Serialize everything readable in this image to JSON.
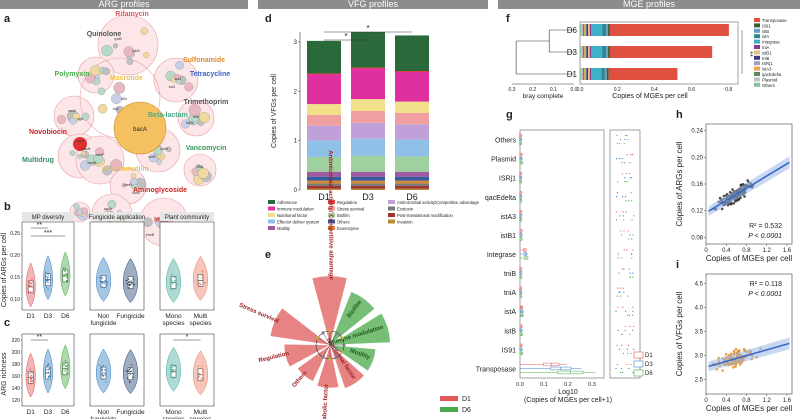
{
  "headers": [
    "ARG profiles",
    "VFG profiles",
    "MGE profiles"
  ],
  "colors": {
    "D1": "#e05a5a",
    "D3": "#3a82c4",
    "D6": "#4aaa4a",
    "a_fill": "#f5a0a8",
    "panel_header": "#e6e6e6"
  },
  "panel_labels": [
    "a",
    "b",
    "c",
    "d",
    "e",
    "f",
    "g",
    "h",
    "i"
  ],
  "a": {
    "classes": [
      {
        "name": "Rifamycin",
        "color": "#e05a5a"
      },
      {
        "name": "Quinolone",
        "color": "#555555"
      },
      {
        "name": "Sulfonamide",
        "color": "#e08a2a"
      },
      {
        "name": "Tetracycline",
        "color": "#3a5fc4"
      },
      {
        "name": "Polymyxin",
        "color": "#4aaa4a"
      },
      {
        "name": "Macrolide",
        "color": "#f0c040"
      },
      {
        "name": "Trimethoprim",
        "color": "#555555"
      },
      {
        "name": "Novobiocin",
        "color": "#d02020"
      },
      {
        "name": "Beta-lactam",
        "color": "#4aaa88"
      },
      {
        "name": "Multidrug",
        "color": "#3a8a6a"
      },
      {
        "name": "Vancomycin",
        "color": "#3a9a5a"
      },
      {
        "name": "Pleuromutilin",
        "color": "#f0c040"
      },
      {
        "name": "Aminoglycoside",
        "color": "#d02020"
      },
      {
        "name": "MLS",
        "color": "#e05a5a"
      }
    ],
    "center_label": "bacA",
    "gene_labels": [
      "rpoB",
      "rphB",
      "sul1",
      "sul2",
      "tetA",
      "tetW",
      "arnA",
      "ugd",
      "mexF",
      "mexB",
      "oprM",
      "acrB",
      "vanR",
      "vanS",
      "aadA",
      "strA",
      "ermF",
      "vgaB",
      "novA",
      "dfrA",
      "bl2e",
      "tolC",
      "macB",
      "emrB"
    ]
  },
  "b": {
    "ylabel": "Copies of ARGs per cell",
    "yticks": [
      "0.10",
      "0.15",
      "0.20",
      "0.25"
    ],
    "panels": [
      {
        "title": "MP diversity",
        "groups": [
          "D1",
          "D3",
          "D6"
        ],
        "means": [
          0.142,
          0.155,
          0.162
        ],
        "sig": [
          "**",
          "***"
        ]
      },
      {
        "title": "Fungicide application",
        "groups": [
          "Non fungicide",
          "Fungicide"
        ],
        "means": [
          0.152,
          0.15
        ]
      },
      {
        "title": "Plant community",
        "groups": [
          "Mono species",
          "Multi species"
        ],
        "means": [
          0.15,
          0.154
        ]
      }
    ]
  },
  "c": {
    "ylabel": "ARG richness",
    "yticks": [
      "120",
      "140",
      "160",
      "180",
      "200",
      "220"
    ],
    "panels": [
      {
        "groups": [
          "D1",
          "D3",
          "D6"
        ],
        "means": [
          158,
          165,
          172
        ],
        "sig": [
          "**"
        ]
      },
      {
        "groups": [
          "Non fungicide",
          "Fungicide"
        ],
        "means": [
          165,
          164
        ]
      },
      {
        "groups": [
          "Mono species",
          "Multi species"
        ],
        "means": [
          168,
          162
        ],
        "sig": [
          "*"
        ]
      }
    ]
  },
  "chart_data": [
    {
      "panel": "d",
      "type": "bar",
      "stacked": true,
      "ylabel": "Copies of VFGs per cell",
      "ylim": [
        0,
        3.2
      ],
      "yticks": [
        "0",
        "1",
        "2",
        "3"
      ],
      "categories": [
        "D1",
        "D3",
        "D6"
      ],
      "sig": [
        "*",
        "*"
      ],
      "series": [
        {
          "name": "Invasion",
          "color": "#b98a3a",
          "values": [
            0.03,
            0.03,
            0.03
          ]
        },
        {
          "name": "Post-translational modification",
          "color": "#a03030",
          "values": [
            0.05,
            0.05,
            0.05
          ]
        },
        {
          "name": "Exotoxin",
          "color": "#7a7a7a",
          "values": [
            0.05,
            0.05,
            0.05
          ]
        },
        {
          "name": "Exoenzyme",
          "color": "#d48a3a",
          "values": [
            0.06,
            0.06,
            0.06
          ]
        },
        {
          "name": "Others",
          "color": "#3a5aa0",
          "values": [
            0.08,
            0.08,
            0.08
          ]
        },
        {
          "name": "Motility",
          "color": "#a05aa0",
          "values": [
            0.1,
            0.1,
            0.1
          ]
        },
        {
          "name": "Biofilm",
          "color": "#9fd0a0",
          "values": [
            0.3,
            0.32,
            0.31
          ]
        },
        {
          "name": "Effector deliver system",
          "color": "#8fc0e8",
          "values": [
            0.33,
            0.35,
            0.34
          ]
        },
        {
          "name": "Antimicrobial activity/Competitive advantage",
          "color": "#c0a0d8",
          "values": [
            0.3,
            0.32,
            0.31
          ]
        },
        {
          "name": "Stress survival",
          "color": "#f0a0a0",
          "values": [
            0.22,
            0.24,
            0.23
          ]
        },
        {
          "name": "Nutritional factor",
          "color": "#f0e08a",
          "values": [
            0.22,
            0.24,
            0.23
          ]
        },
        {
          "name": "Immune modulation",
          "color": "#e030a0",
          "values": [
            0.6,
            0.62,
            0.6
          ]
        },
        {
          "name": "Regulation",
          "color": "#e04040",
          "values": [
            0.02,
            0.02,
            0.02
          ]
        },
        {
          "name": "Adherence",
          "color": "#2a6a3a",
          "values": [
            0.66,
            0.72,
            0.72
          ]
        }
      ],
      "legend_order": [
        "Adherence",
        "Regulation",
        "Antimicrobial activity/Competitive advantage",
        "Immune modulation",
        "Stress survival",
        "Exotoxin",
        "Nutritional factor",
        "Biofilm",
        "Post-translational modification",
        "Effector deliver system",
        "Others",
        "Invasion",
        "Motility",
        "Exoenzyme"
      ]
    },
    {
      "panel": "e",
      "type": "radial-bar",
      "legend": [
        {
          "name": "D1",
          "color": "#e05a5a"
        },
        {
          "name": "D6",
          "color": "#4aaa4a"
        }
      ],
      "categories": [
        {
          "name": "Antimicrobial activity/ Competitive advantage",
          "group": "D1",
          "value": 0.95
        },
        {
          "name": "Biofilm",
          "group": "D6",
          "value": 0.75
        },
        {
          "name": "Immune modulation",
          "group": "D6",
          "value": 0.8
        },
        {
          "name": "Motility",
          "group": "D6",
          "value": 0.55
        },
        {
          "name": "Nutritional factor",
          "group": "D1",
          "value": 0.55
        },
        {
          "name": "Metabolic factor",
          "group": "D1",
          "value": 0.5
        },
        {
          "name": "Others",
          "group": "D1",
          "value": 0.45
        },
        {
          "name": "Regulation",
          "group": "D1",
          "value": 0.55
        },
        {
          "name": "Stress survival",
          "group": "D1",
          "value": 0.8
        }
      ]
    },
    {
      "panel": "f",
      "type": "bar",
      "stacked": true,
      "orientation": "horizontal",
      "xlabel": "Copies of MGEs per cell",
      "dendrogram_label": "bray complete",
      "dendrogram_ticks": [
        "0.3",
        "0.2",
        "0.1",
        "0.0"
      ],
      "xticks": [
        "0.0",
        "0.2",
        "0.4",
        "0.6",
        "0.8"
      ],
      "xlim": [
        0,
        0.85
      ],
      "categories": [
        "D6",
        "D3",
        "D1"
      ],
      "sig": "**",
      "series": [
        {
          "name": "Others",
          "color": "#8ac0a0",
          "values": [
            0.005,
            0.005,
            0.005
          ]
        },
        {
          "name": "Plasmid",
          "color": "#c0c0c0",
          "values": [
            0.01,
            0.01,
            0.01
          ]
        },
        {
          "name": "qacEdelta",
          "color": "#5a8a5a",
          "values": [
            0.008,
            0.008,
            0.008
          ]
        },
        {
          "name": "istA3",
          "color": "#f0a050",
          "values": [
            0.006,
            0.006,
            0.006
          ]
        },
        {
          "name": "ISRj1",
          "color": "#a0a0c0",
          "values": [
            0.006,
            0.006,
            0.006
          ]
        },
        {
          "name": "tniB",
          "color": "#3a3a8a",
          "values": [
            0.008,
            0.008,
            0.008
          ]
        },
        {
          "name": "istB1",
          "color": "#e0c080",
          "values": [
            0.01,
            0.01,
            0.01
          ]
        },
        {
          "name": "tniA",
          "color": "#8a3a8a",
          "values": [
            0.008,
            0.008,
            0.008
          ]
        },
        {
          "name": "Integrase",
          "color": "#40b0c8",
          "values": [
            0.06,
            0.06,
            0.055
          ]
        },
        {
          "name": "istA",
          "color": "#2a8a8a",
          "values": [
            0.02,
            0.02,
            0.018
          ]
        },
        {
          "name": "istB",
          "color": "#6a9ac8",
          "values": [
            0.01,
            0.01,
            0.01
          ]
        },
        {
          "name": "IS91",
          "color": "#3a5a3a",
          "values": [
            0.01,
            0.01,
            0.01
          ]
        },
        {
          "name": "Transposase",
          "color": "#e05040",
          "values": [
            0.64,
            0.55,
            0.37
          ]
        }
      ],
      "legend_order": [
        "Transposase",
        "IS91",
        "istB",
        "istA",
        "Integrase",
        "tniA",
        "istB1",
        "tniB",
        "ISRj1",
        "istA3",
        "qacEdelta",
        "Plasmid",
        "Others"
      ]
    },
    {
      "panel": "g",
      "type": "boxplot",
      "orientation": "horizontal",
      "xlabel": "Log10",
      "xlabel2": "(Copies of MGEs per cell+1)",
      "xticks": [
        "0.0",
        "0.1",
        "0.2",
        "0.3"
      ],
      "xlim": [
        0,
        0.35
      ],
      "categories": [
        "Others",
        "Plasmid",
        "ISRj1",
        "qacEdelta",
        "istA3",
        "istB1",
        "Integrase",
        "tniB",
        "tniA",
        "istA",
        "istB",
        "IS91",
        "Transposase"
      ],
      "groups": [
        "D1",
        "D3",
        "D6"
      ],
      "medians": {
        "D1": [
          0.002,
          0.004,
          0.002,
          0.003,
          0.003,
          0.004,
          0.02,
          0.003,
          0.003,
          0.007,
          0.004,
          0.004,
          0.13
        ],
        "D3": [
          0.002,
          0.004,
          0.002,
          0.003,
          0.003,
          0.004,
          0.022,
          0.003,
          0.003,
          0.008,
          0.004,
          0.004,
          0.17
        ],
        "D6": [
          0.002,
          0.005,
          0.002,
          0.003,
          0.003,
          0.004,
          0.025,
          0.003,
          0.003,
          0.008,
          0.005,
          0.005,
          0.21
        ]
      }
    },
    {
      "panel": "h",
      "type": "scatter",
      "xlabel": "Copies of MGEs per cell",
      "ylabel": "Copies of ARGs per cell",
      "xlim": [
        0,
        1.7
      ],
      "ylim": [
        0.07,
        0.25
      ],
      "xticks": [
        "0",
        "0.4",
        "0.8",
        "1.2",
        "1.6"
      ],
      "yticks": [
        "0.08",
        "0.12",
        "0.16",
        "0.20",
        "0.24"
      ],
      "fit": {
        "intercept": 0.117,
        "slope": 0.0458
      },
      "stats": {
        "r2": "R² = 0.532",
        "p": "P < 0.0001"
      },
      "point_color": "#333333",
      "line_color": "#3a6ac8",
      "n_points": 150
    },
    {
      "panel": "i",
      "type": "scatter",
      "xlabel": "Copies of MGEs per cell",
      "ylabel": "Copies of VFGs per cell",
      "xlim": [
        0,
        1.7
      ],
      "ylim": [
        2.2,
        4.7
      ],
      "xticks": [
        "0",
        "0.4",
        "0.8",
        "1.2",
        "1.6"
      ],
      "yticks": [
        "2.5",
        "3.0",
        "3.5",
        "4.0",
        "4.5"
      ],
      "fit": {
        "intercept": 2.76,
        "slope": 0.3
      },
      "stats": {
        "r2": "R² = 0.118",
        "p": "P < 0.0001"
      },
      "point_color": "#e8902a",
      "line_color": "#3a6ac8",
      "n_points": 140
    }
  ]
}
